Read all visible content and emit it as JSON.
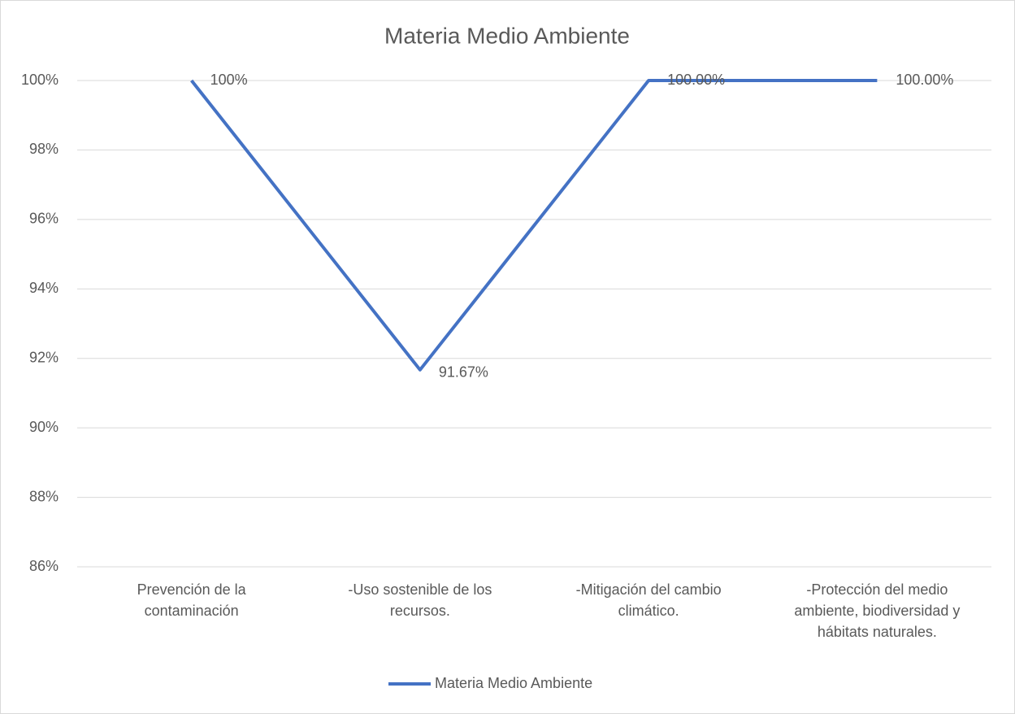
{
  "chart_data": {
    "type": "line",
    "title": "Materia Medio Ambiente",
    "categories": [
      "Prevención de la contaminación",
      "-Uso sostenible de los recursos.",
      "-Mitigación del cambio climático.",
      "-Protección del medio ambiente, biodiversidad y hábitats naturales."
    ],
    "series": [
      {
        "name": "Materia Medio Ambiente",
        "color": "#4472c4",
        "values": [
          100,
          91.67,
          100,
          100
        ],
        "value_labels": [
          "100%",
          "91.67%",
          "100.00%",
          "100.00%"
        ]
      }
    ],
    "ylim": [
      86,
      100
    ],
    "yticks": [
      {
        "value": 86,
        "label": "86%"
      },
      {
        "value": 88,
        "label": "88%"
      },
      {
        "value": 90,
        "label": "90%"
      },
      {
        "value": 92,
        "label": "92%"
      },
      {
        "value": 94,
        "label": "94%"
      },
      {
        "value": 96,
        "label": "96%"
      },
      {
        "value": 98,
        "label": "98%"
      },
      {
        "value": 100,
        "label": "100%"
      }
    ],
    "grid": true,
    "legend": "bottom"
  }
}
